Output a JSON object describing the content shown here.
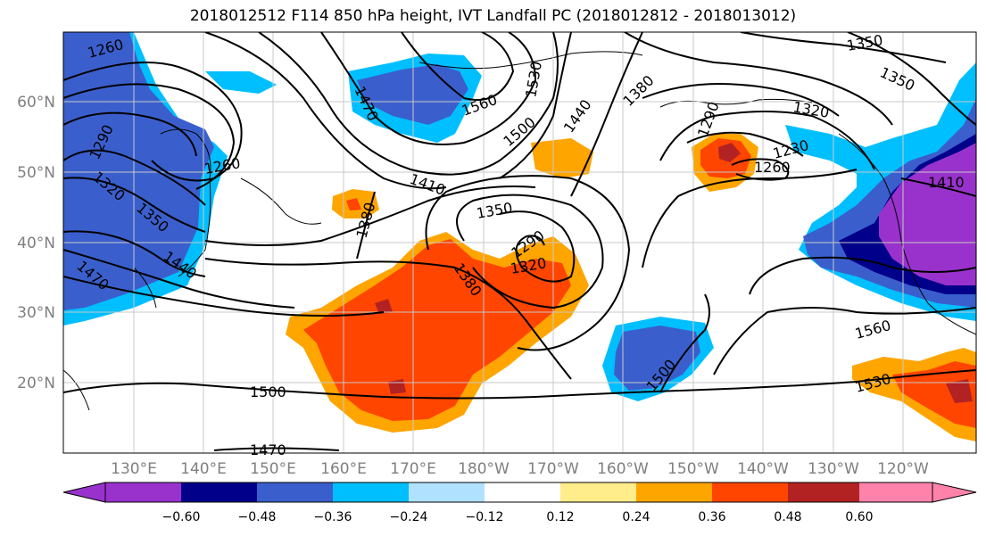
{
  "title": "2018012512 F114 850 hPa height, IVT Landfall PC (2018012812 - 2018013012)",
  "latitude_labels": [
    "60°N",
    "50°N",
    "40°N",
    "30°N",
    "20°N"
  ],
  "longitude_labels": [
    "130°E",
    "140°E",
    "150°E",
    "160°E",
    "170°E",
    "180°W",
    "170°W",
    "160°W",
    "150°W",
    "140°W",
    "130°W",
    "120°W"
  ],
  "contour_labels": [
    "1260",
    "1290",
    "1320",
    "1350",
    "1440",
    "1470",
    "1260",
    "1470",
    "1560",
    "1530",
    "1500",
    "1440",
    "1380",
    "1290",
    "1320",
    "1260",
    "1230",
    "1350",
    "1410",
    "1350",
    "1410",
    "1380",
    "1290",
    "1320",
    "1380",
    "1350",
    "1500",
    "1470",
    "1500",
    "1560",
    "1530"
  ],
  "colorbar": {
    "colors": [
      "#9932cc",
      "#00008b",
      "#3a5fcd",
      "#00bfff",
      "#b0e2ff",
      "#ffffff",
      "#ffec8b",
      "#ffa500",
      "#ff4500",
      "#b22222",
      "#ff82ab"
    ],
    "tick_labels": [
      "−0.60",
      "−0.48",
      "−0.36",
      "−0.24",
      "−0.12",
      "0.12",
      "0.24",
      "0.36",
      "0.48",
      "0.60"
    ]
  }
}
